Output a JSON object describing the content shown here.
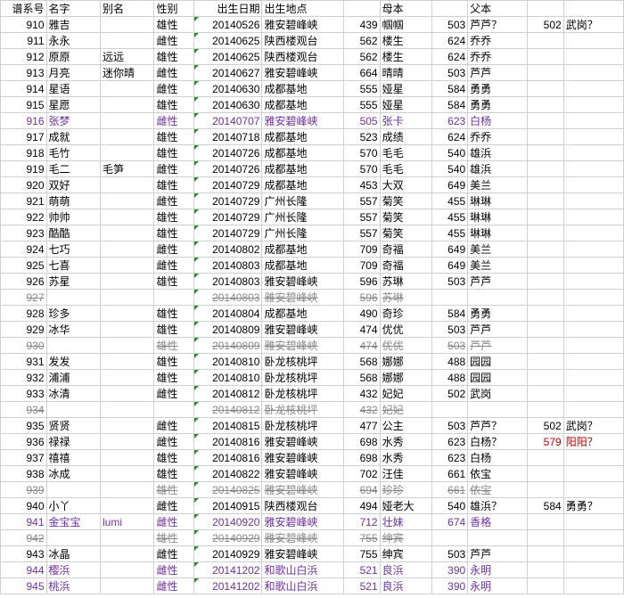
{
  "headers": [
    "谱系号",
    "名字",
    "别名",
    "性别",
    "出生日期",
    "出生地点",
    "",
    "母本",
    "",
    "父本",
    "",
    ""
  ],
  "rows": [
    {
      "id": "910",
      "name": "雅吉",
      "alias": "",
      "sex": "雄性",
      "date": "20140526",
      "place": "雅安碧峰峡",
      "mid": "439",
      "mname": "帼帼",
      "fid": "503",
      "fname": "芦芦？",
      "fid2": "502",
      "fname2": "武岗？"
    },
    {
      "id": "911",
      "name": "永永",
      "alias": "",
      "sex": "雌性",
      "date": "20140625",
      "place": "陕西楼观台",
      "mid": "562",
      "mname": "楼生",
      "fid": "624",
      "fname": "乔乔"
    },
    {
      "id": "912",
      "name": "原原",
      "alias": "远远",
      "sex": "雄性",
      "date": "20140625",
      "place": "陕西楼观台",
      "mid": "562",
      "mname": "楼生",
      "fid": "624",
      "fname": "乔乔"
    },
    {
      "id": "913",
      "name": "月亮",
      "alias": "迷你晴",
      "sex": "雌性",
      "date": "20140627",
      "place": "雅安碧峰峡",
      "mid": "664",
      "mname": "晴晴",
      "fid": "503",
      "fname": "芦芦"
    },
    {
      "id": "914",
      "name": "星语",
      "alias": "",
      "sex": "雌性",
      "date": "20140630",
      "place": "成都基地",
      "mid": "555",
      "mname": "娅星",
      "fid": "584",
      "fname": "勇勇"
    },
    {
      "id": "915",
      "name": "星愿",
      "alias": "",
      "sex": "雄性",
      "date": "20140630",
      "place": "成都基地",
      "mid": "555",
      "mname": "娅星",
      "fid": "584",
      "fname": "勇勇"
    },
    {
      "id": "916",
      "name": "张梦",
      "alias": "",
      "sex": "雌性",
      "date": "20140707",
      "place": "雅安碧峰峡",
      "mid": "505",
      "mname": "张卡",
      "fid": "623",
      "fname": "白杨",
      "purple": true
    },
    {
      "id": "917",
      "name": "成就",
      "alias": "",
      "sex": "雄性",
      "date": "20140718",
      "place": "成都基地",
      "mid": "523",
      "mname": "成绩",
      "fid": "624",
      "fname": "乔乔"
    },
    {
      "id": "918",
      "name": "毛竹",
      "alias": "",
      "sex": "雄性",
      "date": "20140726",
      "place": "成都基地",
      "mid": "570",
      "mname": "毛毛",
      "fid": "540",
      "fname": "雄浜"
    },
    {
      "id": "919",
      "name": "毛二",
      "alias": "毛笋",
      "sex": "雌性",
      "date": "20140726",
      "place": "成都基地",
      "mid": "570",
      "mname": "毛毛",
      "fid": "540",
      "fname": "雄浜"
    },
    {
      "id": "920",
      "name": "双好",
      "alias": "",
      "sex": "雄性",
      "date": "20140729",
      "place": "成都基地",
      "mid": "453",
      "mname": "大双",
      "fid": "649",
      "fname": "美兰"
    },
    {
      "id": "921",
      "name": "萌萌",
      "alias": "",
      "sex": "雌性",
      "date": "20140729",
      "place": "广州长隆",
      "mid": "557",
      "mname": "菊笑",
      "fid": "455",
      "fname": "琳琳"
    },
    {
      "id": "922",
      "name": "帅帅",
      "alias": "",
      "sex": "雄性",
      "date": "20140729",
      "place": "广州长隆",
      "mid": "557",
      "mname": "菊笑",
      "fid": "455",
      "fname": "琳琳"
    },
    {
      "id": "923",
      "name": "酷酷",
      "alias": "",
      "sex": "雄性",
      "date": "20140729",
      "place": "广州长隆",
      "mid": "557",
      "mname": "菊笑",
      "fid": "455",
      "fname": "琳琳"
    },
    {
      "id": "924",
      "name": "七巧",
      "alias": "",
      "sex": "雌性",
      "date": "20140802",
      "place": "成都基地",
      "mid": "709",
      "mname": "奇福",
      "fid": "649",
      "fname": "美兰"
    },
    {
      "id": "925",
      "name": "七喜",
      "alias": "",
      "sex": "雌性",
      "date": "20140803",
      "place": "成都基地",
      "mid": "709",
      "mname": "奇福",
      "fid": "649",
      "fname": "美兰"
    },
    {
      "id": "926",
      "name": "苏星",
      "alias": "",
      "sex": "雄性",
      "date": "20140803",
      "place": "雅安碧峰峡",
      "mid": "596",
      "mname": "苏琳",
      "fid": "503",
      "fname": "芦芦"
    },
    {
      "id": "927",
      "name": "",
      "alias": "",
      "sex": "",
      "date": "20140803",
      "place": "雅安碧峰峡",
      "mid": "596",
      "mname": "苏琳",
      "fid": "",
      "fname": "",
      "struck": true
    },
    {
      "id": "928",
      "name": "珍多",
      "alias": "",
      "sex": "雄性",
      "date": "20140804",
      "place": "成都基地",
      "mid": "490",
      "mname": "奇珍",
      "fid": "584",
      "fname": "勇勇"
    },
    {
      "id": "929",
      "name": "冰华",
      "alias": "",
      "sex": "雄性",
      "date": "20140809",
      "place": "雅安碧峰峡",
      "mid": "474",
      "mname": "优优",
      "fid": "503",
      "fname": "芦芦"
    },
    {
      "id": "930",
      "name": "",
      "alias": "",
      "sex": "雄性",
      "date": "20140809",
      "place": "雅安碧峰峡",
      "mid": "474",
      "mname": "优优",
      "fid": "503",
      "fname": "芦芦",
      "struck": true
    },
    {
      "id": "931",
      "name": "发发",
      "alias": "",
      "sex": "雄性",
      "date": "20140810",
      "place": "卧龙核桃坪",
      "mid": "568",
      "mname": "娜娜",
      "fid": "488",
      "fname": "园园"
    },
    {
      "id": "932",
      "name": "浦浦",
      "alias": "",
      "sex": "雄性",
      "date": "20140810",
      "place": "卧龙核桃坪",
      "mid": "568",
      "mname": "娜娜",
      "fid": "488",
      "fname": "园园"
    },
    {
      "id": "933",
      "name": "冰清",
      "alias": "",
      "sex": "雌性",
      "date": "20140812",
      "place": "卧龙核桃坪",
      "mid": "432",
      "mname": "妃妃",
      "fid": "502",
      "fname": "武岗"
    },
    {
      "id": "934",
      "name": "",
      "alias": "",
      "sex": "",
      "date": "20140812",
      "place": "卧龙核桃坪",
      "mid": "432",
      "mname": "妃妃",
      "fid": "",
      "fname": "",
      "struck": true
    },
    {
      "id": "935",
      "name": "贤贤",
      "alias": "",
      "sex": "雌性",
      "date": "20140815",
      "place": "卧龙核桃坪",
      "mid": "477",
      "mname": "公主",
      "fid": "503",
      "fname": "芦芦？",
      "fid2": "502",
      "fname2": "武岗？"
    },
    {
      "id": "936",
      "name": "禄禄",
      "alias": "",
      "sex": "雌性",
      "date": "20140816",
      "place": "雅安碧峰峡",
      "mid": "698",
      "mname": "水秀",
      "fid": "623",
      "fname": "白杨？",
      "fid2": "579",
      "fname2": "阳阳？",
      "f2red": true
    },
    {
      "id": "937",
      "name": "禧禧",
      "alias": "",
      "sex": "雄性",
      "date": "20140816",
      "place": "雅安碧峰峡",
      "mid": "698",
      "mname": "水秀",
      "fid": "623",
      "fname": "白杨"
    },
    {
      "id": "938",
      "name": "冰成",
      "alias": "",
      "sex": "雄性",
      "date": "20140822",
      "place": "雅安碧峰峡",
      "mid": "702",
      "mname": "汪佳",
      "fid": "661",
      "fname": "依宝"
    },
    {
      "id": "939",
      "name": "",
      "alias": "",
      "sex": "雄性",
      "date": "20140825",
      "place": "雅安碧峰峡",
      "mid": "694",
      "mname": "珍珍",
      "fid": "661",
      "fname": "依宝",
      "struck": true
    },
    {
      "id": "940",
      "name": "小丫",
      "alias": "",
      "sex": "雌性",
      "date": "20140915",
      "place": "陕西楼观台",
      "mid": "494",
      "mname": "娅老大",
      "fid": "540",
      "fname": "雄浜？",
      "fid2": "584",
      "fname2": "勇勇？"
    },
    {
      "id": "941",
      "name": "金宝宝",
      "alias": "lumi",
      "sex": "雌性",
      "date": "20140920",
      "place": "雅安碧峰峡",
      "mid": "712",
      "mname": "壮妹",
      "fid": "674",
      "fname": "香格",
      "purple": true
    },
    {
      "id": "942",
      "name": "",
      "alias": "",
      "sex": "雄性",
      "date": "20140929",
      "place": "雅安碧峰峡",
      "mid": "755",
      "mname": "绅宾",
      "fid": "",
      "fname": "",
      "struck": true
    },
    {
      "id": "943",
      "name": "冰晶",
      "alias": "",
      "sex": "雌性",
      "date": "20140929",
      "place": "雅安碧峰峡",
      "mid": "755",
      "mname": "绅宾",
      "fid": "503",
      "fname": "芦芦"
    },
    {
      "id": "944",
      "name": "樱浜",
      "alias": "",
      "sex": "雌性",
      "date": "20141202",
      "place": "和歌山白浜",
      "mid": "521",
      "mname": "良浜",
      "fid": "390",
      "fname": "永明",
      "purple": true
    },
    {
      "id": "945",
      "name": "桃浜",
      "alias": "",
      "sex": "雌性",
      "date": "20141202",
      "place": "和歌山白浜",
      "mid": "521",
      "mname": "良浜",
      "fid": "390",
      "fname": "永明",
      "purple": true
    }
  ]
}
